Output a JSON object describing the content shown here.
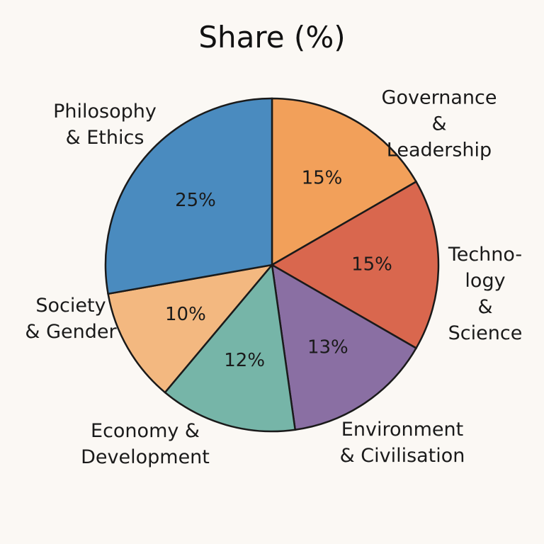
{
  "chart_data": {
    "type": "pie",
    "title": "Share (%)",
    "categories": [
      "Governance\n& Leadership",
      "Techno-\nlogy\n& Science",
      "Environment\n& Civilisation",
      "Economy &\nDevelopment",
      "Society\n& Gender",
      "Philosophy\n& Ethics"
    ],
    "values": [
      15,
      15,
      13,
      12,
      10,
      25
    ],
    "value_labels": [
      "15%",
      "15%",
      "13%",
      "12%",
      "10%",
      "25%"
    ],
    "colors": [
      "#f2a05a",
      "#d9674e",
      "#8a6fa3",
      "#76b5a8",
      "#f3b880",
      "#4a8bbf"
    ]
  }
}
